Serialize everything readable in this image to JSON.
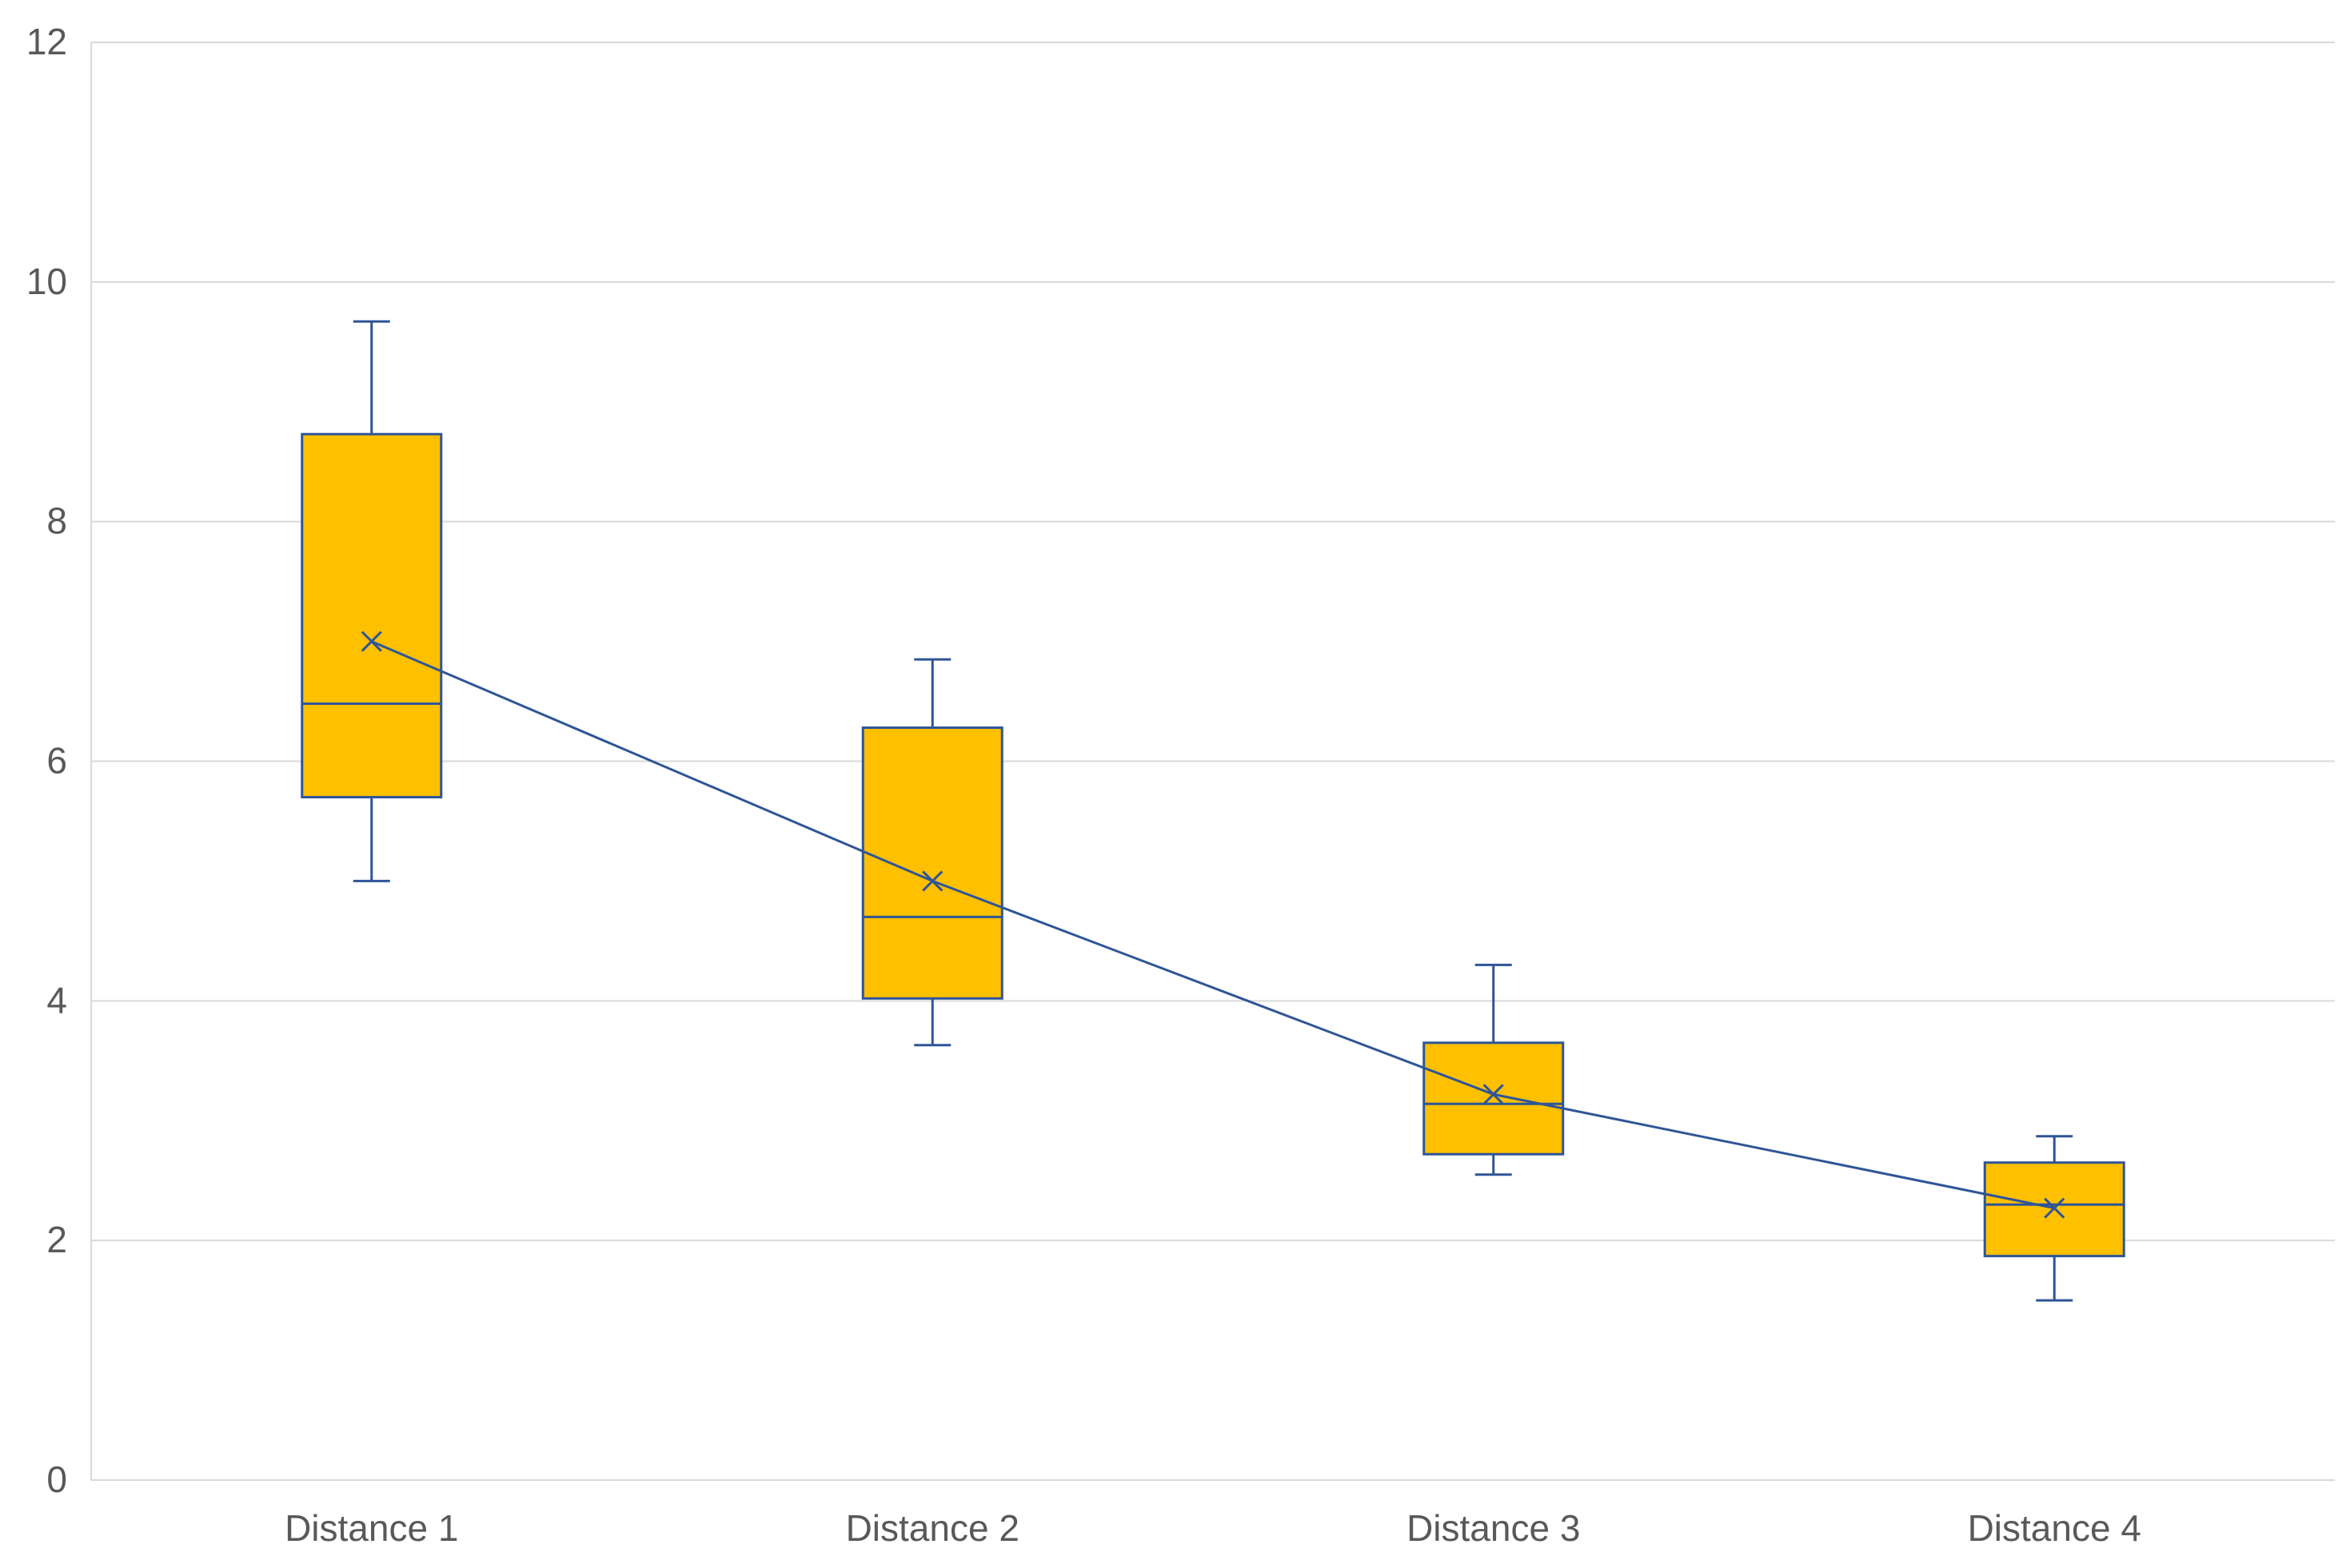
{
  "chart_data": {
    "type": "box",
    "title": "",
    "xlabel": "",
    "ylabel": "",
    "ylim": [
      0,
      12
    ],
    "yticks": [
      0,
      2,
      4,
      6,
      8,
      10,
      12
    ],
    "grid": true,
    "legend": "none",
    "categories": [
      "Distance 1",
      "Distance 2",
      "Distance 3",
      "Distance 4"
    ],
    "boxes": [
      {
        "category": "Distance 1",
        "min": 5.0,
        "q1": 5.7,
        "median": 6.48,
        "q3": 8.73,
        "max": 9.67,
        "mean": 7.0
      },
      {
        "category": "Distance 2",
        "min": 3.63,
        "q1": 4.02,
        "median": 4.7,
        "q3": 6.28,
        "max": 6.85,
        "mean": 5.0
      },
      {
        "category": "Distance 3",
        "min": 2.55,
        "q1": 2.72,
        "median": 3.14,
        "q3": 3.65,
        "max": 4.3,
        "mean": 3.22
      },
      {
        "category": "Distance 4",
        "min": 1.5,
        "q1": 1.87,
        "median": 2.3,
        "q3": 2.65,
        "max": 2.87,
        "mean": 2.27
      }
    ],
    "mean_line": true,
    "colors": {
      "box_fill": "#FFC000",
      "stroke": "#2F5597",
      "grid": "#D9D9D9",
      "tick_text": "#595959"
    }
  }
}
